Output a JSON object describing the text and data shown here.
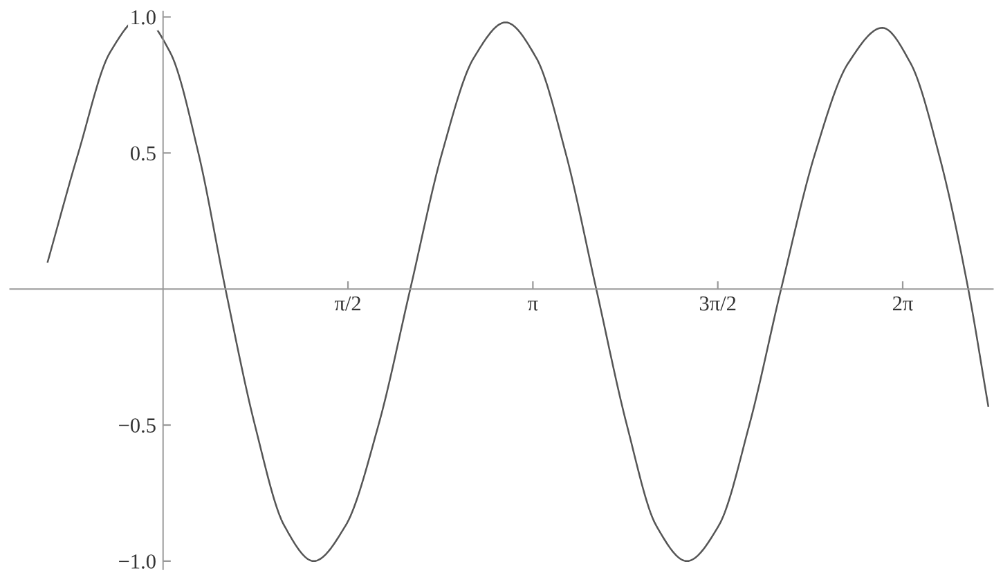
{
  "chart_data": {
    "type": "line",
    "x": [
      -0.98,
      -0.72,
      -0.45,
      -0.18,
      0.06,
      0.3,
      0.53,
      0.78,
      1.03,
      1.28,
      1.55,
      1.83,
      2.1,
      2.37,
      2.64,
      2.91,
      3.17,
      3.42,
      3.68,
      3.94,
      4.19,
      4.45,
      4.72,
      4.98,
      5.25,
      5.54,
      5.82,
      6.11,
      6.35,
      6.6,
      6.84,
      7.01
    ],
    "series": [
      {
        "color": "#555555",
        "values": [
          0.1,
          0.5,
          0.87,
          1.0,
          0.87,
          0.5,
          0,
          -0.5,
          -0.87,
          -1.0,
          -0.87,
          -0.5,
          0,
          0.5,
          0.85,
          0.98,
          0.85,
          0.5,
          0,
          -0.5,
          -0.87,
          -1.0,
          -0.87,
          -0.5,
          0,
          0.5,
          0.83,
          0.96,
          0.83,
          0.48,
          0,
          -0.43
        ]
      }
    ],
    "xlim": [
      -1.3,
      7.05
    ],
    "ylim": [
      -1.03,
      1.02
    ],
    "xticks": [
      {
        "value": 1.5708,
        "label": "π/2"
      },
      {
        "value": 3.1416,
        "label": "π"
      },
      {
        "value": 4.7124,
        "label": "3π/2"
      },
      {
        "value": 6.2832,
        "label": "2π"
      }
    ],
    "yticks": [
      {
        "value": -1.0,
        "label": "−1.0"
      },
      {
        "value": -0.5,
        "label": "−0.5"
      },
      {
        "value": 0.5,
        "label": "0.5"
      },
      {
        "value": 1.0,
        "label": "1.0"
      }
    ],
    "grid": false,
    "legend": false,
    "marker": "none",
    "line_style": "solid"
  }
}
